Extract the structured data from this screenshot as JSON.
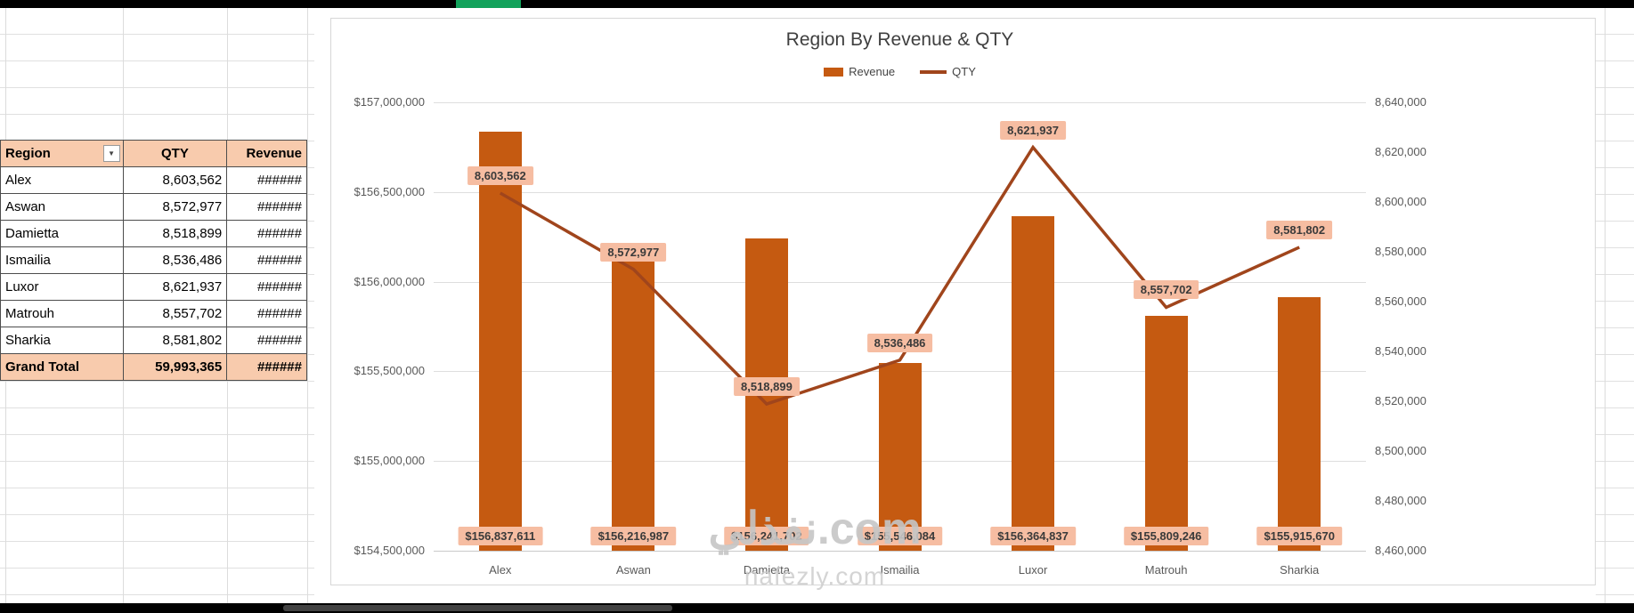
{
  "window": {
    "top_accent_color": "#12A25B"
  },
  "pivot_table": {
    "header_bg": "#F8CBAD",
    "headers": {
      "region": "Region",
      "qty": "QTY",
      "revenue": "Revenue"
    },
    "rows": [
      {
        "region": "Alex",
        "qty": "8,603,562",
        "revenue": "######"
      },
      {
        "region": "Aswan",
        "qty": "8,572,977",
        "revenue": "######"
      },
      {
        "region": "Damietta",
        "qty": "8,518,899",
        "revenue": "######"
      },
      {
        "region": "Ismailia",
        "qty": "8,536,486",
        "revenue": "######"
      },
      {
        "region": "Luxor",
        "qty": "8,621,937",
        "revenue": "######"
      },
      {
        "region": "Matrouh",
        "qty": "8,557,702",
        "revenue": "######"
      },
      {
        "region": "Sharkia",
        "qty": "8,581,802",
        "revenue": "######"
      }
    ],
    "grand_total": {
      "region": "Grand Total",
      "qty": "59,993,365",
      "revenue": "######"
    }
  },
  "chart_data": {
    "type": "combo bar+line",
    "title": "Region By Revenue & QTY",
    "categories": [
      "Alex",
      "Aswan",
      "Damietta",
      "Ismailia",
      "Luxor",
      "Matrouh",
      "Sharkia"
    ],
    "series": [
      {
        "name": "Revenue",
        "type": "bar",
        "axis": "left",
        "color": "#C55A11",
        "values": [
          156837611,
          156216987,
          156241702,
          155546084,
          156364837,
          155809246,
          155915670
        ],
        "data_labels": [
          "$156,837,611",
          "$156,216,987",
          "$156,241,702",
          "$155,546,084",
          "$156,364,837",
          "$155,809,246",
          "$155,915,670"
        ]
      },
      {
        "name": "QTY",
        "type": "line",
        "axis": "right",
        "color": "#A0451C",
        "values": [
          8603562,
          8572977,
          8518899,
          8536486,
          8621937,
          8557702,
          8581802
        ],
        "data_labels": [
          "8,603,562",
          "8,572,977",
          "8,518,899",
          "8,536,486",
          "8,621,937",
          "8,557,702",
          "8,581,802"
        ]
      }
    ],
    "left_axis": {
      "min": 154500000,
      "max": 157000000,
      "step": 500000,
      "ticks_top_to_bottom": [
        "$157,000,000",
        "$156,500,000",
        "$156,000,000",
        "$155,500,000",
        "$155,000,000",
        "$154,500,000"
      ]
    },
    "right_axis": {
      "min": 8460000,
      "max": 8640000,
      "step": 20000,
      "ticks_top_to_bottom": [
        "8,640,000",
        "8,620,000",
        "8,600,000",
        "8,580,000",
        "8,560,000",
        "8,540,000",
        "8,520,000",
        "8,500,000",
        "8,480,000",
        "8,460,000"
      ]
    },
    "legend_position": "top",
    "grid": true,
    "label_bg": "#F6BDA2"
  },
  "watermark": {
    "primary": "نفذلي.com",
    "secondary": "nafezly.com"
  }
}
